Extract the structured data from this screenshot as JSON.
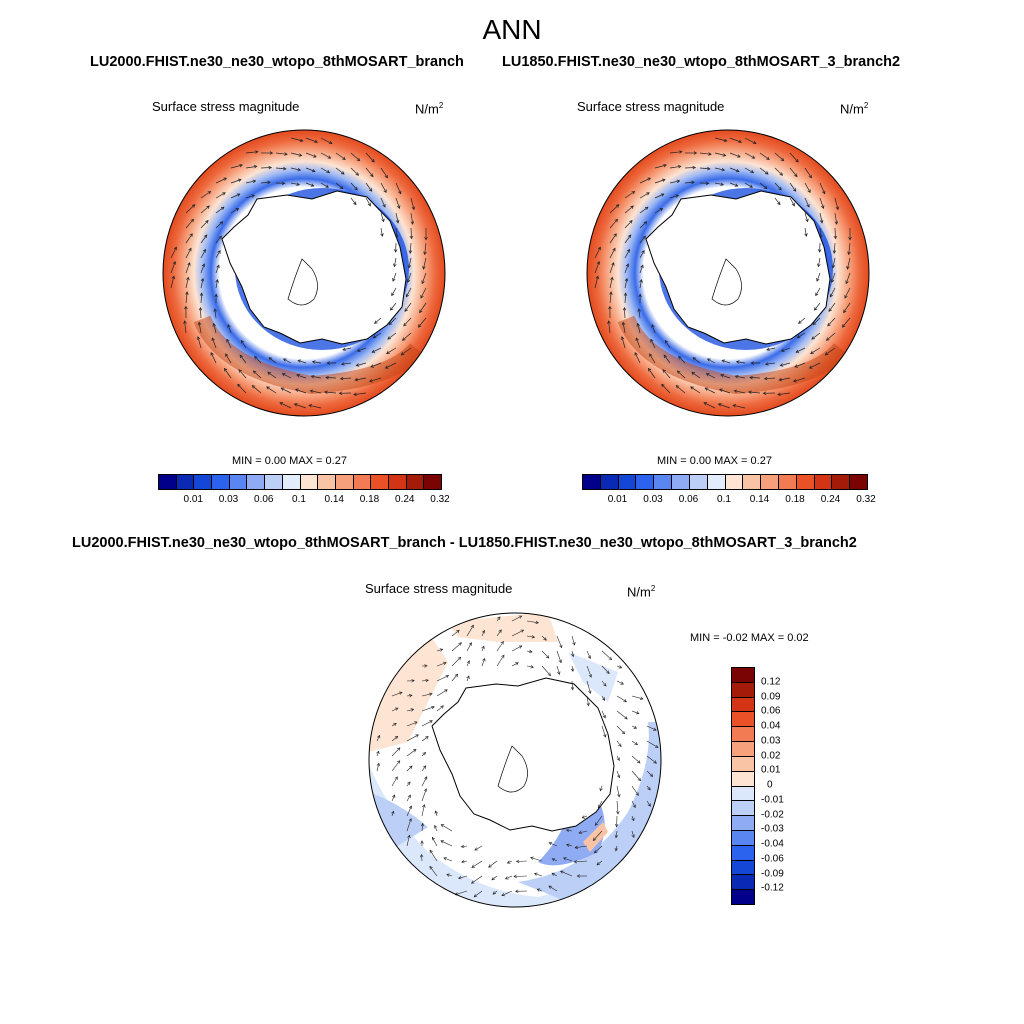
{
  "main_title": "ANN",
  "panels": [
    {
      "case_title": "LU2000.FHIST.ne30_ne30_wtopo_8thMOSART_branch",
      "variable": "Surface stress magnitude",
      "units_base": "N/m",
      "units_exp": "2",
      "minmax": "MIN =   0.00 MAX =   0.27",
      "colorbar_labels": [
        "0.01",
        "0.03",
        "0.06",
        "0.1",
        "0.14",
        "0.18",
        "0.24",
        "0.32"
      ]
    },
    {
      "case_title": "LU1850.FHIST.ne30_ne30_wtopo_8thMOSART_3_branch2",
      "variable": "Surface stress magnitude",
      "units_base": "N/m",
      "units_exp": "2",
      "minmax": "MIN =   0.00 MAX =   0.27",
      "colorbar_labels": [
        "0.01",
        "0.03",
        "0.06",
        "0.1",
        "0.14",
        "0.18",
        "0.24",
        "0.32"
      ]
    }
  ],
  "diff_panel": {
    "case_title": "LU2000.FHIST.ne30_ne30_wtopo_8thMOSART_branch - LU1850.FHIST.ne30_ne30_wtopo_8thMOSART_3_branch2",
    "variable": "Surface stress magnitude",
    "units_base": "N/m",
    "units_exp": "2",
    "minmax": "MIN =  -0.02 MAX =   0.02",
    "colorbar_labels": [
      "0.12",
      "0.09",
      "0.06",
      "0.04",
      "0.03",
      "0.02",
      "0.01",
      "0",
      "-0.01",
      "-0.02",
      "-0.03",
      "-0.04",
      "-0.06",
      "-0.09",
      "-0.12"
    ]
  },
  "colors": {
    "abs_scale": [
      "#00008b",
      "#0a2ab5",
      "#1447d6",
      "#2b63ee",
      "#5a86f2",
      "#8fabf3",
      "#bccff6",
      "#e3ecfb",
      "#fde4d3",
      "#f9c4a6",
      "#f6a07c",
      "#f27b54",
      "#ea5126",
      "#d23415",
      "#a51b0a",
      "#7a0403"
    ],
    "diff_scale": [
      "#7a0403",
      "#a51b0a",
      "#d23415",
      "#ea5126",
      "#f27b54",
      "#f6a07c",
      "#f9c4a6",
      "#fde4d3",
      "#dbe7fa",
      "#bccff6",
      "#8fabf3",
      "#5a86f2",
      "#2b63ee",
      "#1447d6",
      "#0a2ab5",
      "#00008b"
    ]
  }
}
